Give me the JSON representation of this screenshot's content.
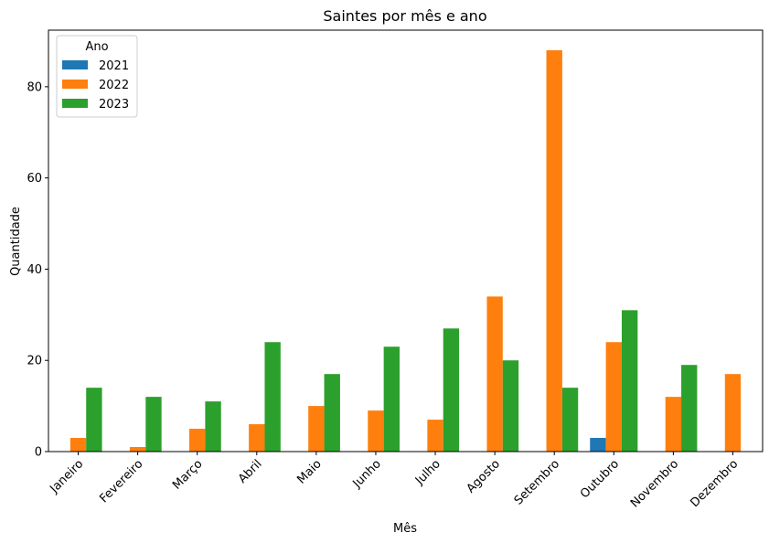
{
  "chart_data": {
    "type": "bar",
    "title": "Saintes por mês e ano",
    "xlabel": "Mês",
    "ylabel": "Quantidade",
    "categories": [
      "Janeiro",
      "Fevereiro",
      "Março",
      "Abril",
      "Maio",
      "Junho",
      "Julho",
      "Agosto",
      "Setembro",
      "Outubro",
      "Novembro",
      "Dezembro"
    ],
    "series": [
      {
        "name": "2021",
        "color": "#1f77b4",
        "values": [
          0,
          0,
          0,
          0,
          0,
          0,
          0,
          0,
          0,
          3,
          0,
          0
        ]
      },
      {
        "name": "2022",
        "color": "#ff7f0e",
        "values": [
          3,
          1,
          5,
          6,
          10,
          9,
          7,
          34,
          88,
          24,
          12,
          17
        ]
      },
      {
        "name": "2023",
        "color": "#2ca02c",
        "values": [
          14,
          12,
          11,
          24,
          17,
          23,
          27,
          20,
          14,
          31,
          19,
          0
        ]
      }
    ],
    "ylim": [
      0,
      92.4
    ],
    "yticks": [
      0,
      20,
      40,
      60,
      80
    ],
    "legend": {
      "title": "Ano",
      "placement": "top-left"
    },
    "grid": false
  }
}
